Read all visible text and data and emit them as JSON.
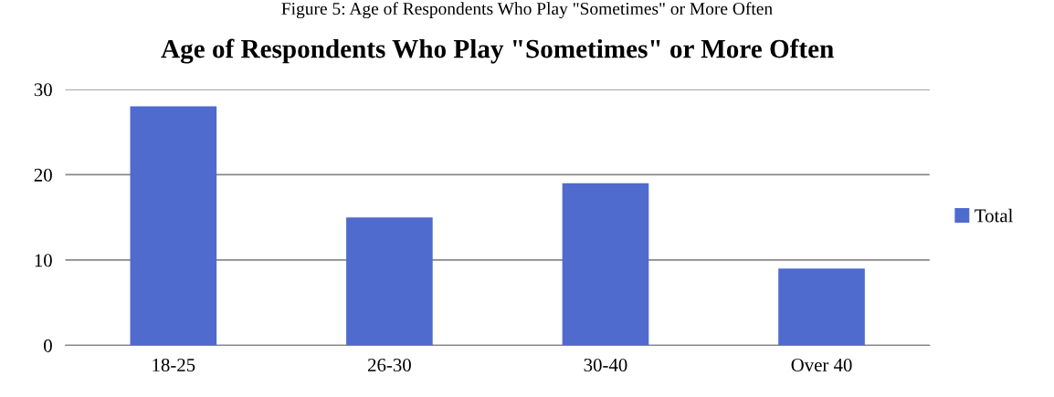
{
  "chart_data": {
    "type": "bar",
    "title": "Age of Respondents Who Play \"Sometimes\" or More Often",
    "annotations": [
      "Figure 5: Age of Respondents Who Play \"Sometimes\" or More Often"
    ],
    "categories": [
      "18-25",
      "26-30",
      "30-40",
      "Over 40"
    ],
    "series": [
      {
        "name": "Total",
        "color": "#4f6bcd",
        "values": [
          28,
          15,
          19,
          9
        ]
      }
    ],
    "ylim": [
      0,
      30
    ],
    "yticks": [
      0,
      10,
      20,
      30
    ],
    "grid": "y",
    "legend": "right"
  }
}
